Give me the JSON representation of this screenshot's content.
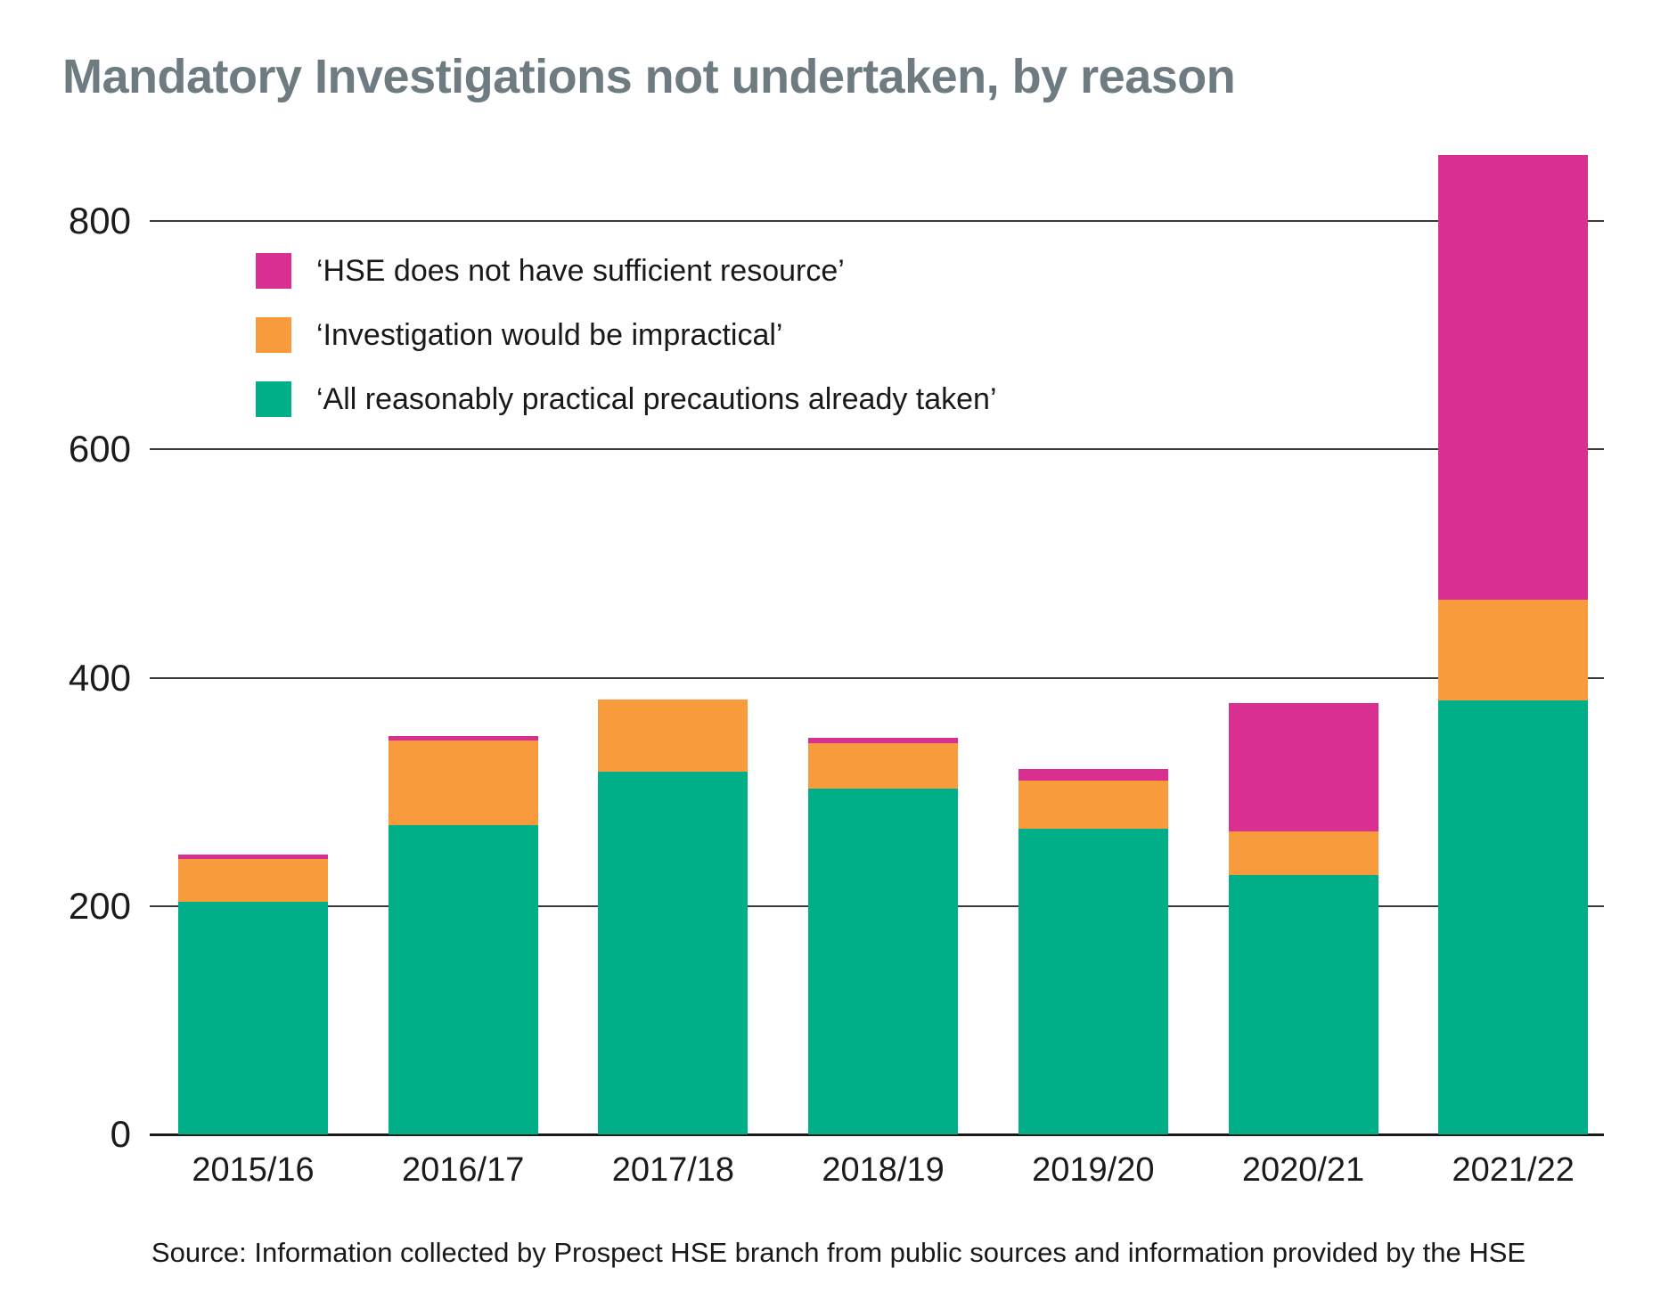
{
  "title": "Mandatory Investigations not undertaken, by reason",
  "source": "Source: Information collected by Prospect HSE branch from public sources and information provided by the HSE",
  "colors": {
    "pink": "#D82F90",
    "orange": "#F89B3D",
    "green": "#00AF88",
    "title_gray": "#6E7B80",
    "gridline": "#3A3A3A",
    "text": "#191919"
  },
  "chart_data": {
    "type": "bar",
    "stacked": true,
    "title": "Mandatory Investigations not undertaken, by reason",
    "categories": [
      "2015/16",
      "2016/17",
      "2017/18",
      "2018/19",
      "2019/20",
      "2020/21",
      "2021/22"
    ],
    "series": [
      {
        "name": "‘HSE does not have sufficient resource’",
        "color": "#D82F90",
        "values": [
          4,
          4,
          0,
          4,
          10,
          113,
          390
        ]
      },
      {
        "name": "‘Investigation would be impractical’",
        "color": "#F89B3D",
        "values": [
          37,
          74,
          63,
          40,
          42,
          38,
          88
        ]
      },
      {
        "name": "‘All reasonably practical precautions already taken’",
        "color": "#00AF88",
        "values": [
          204,
          271,
          318,
          303,
          268,
          227,
          380
        ]
      }
    ],
    "totals": [
      245,
      349,
      381,
      347,
      320,
      378,
      858
    ],
    "xlabel": "",
    "ylabel": "",
    "ylim": [
      0,
      860
    ],
    "y_ticks": [
      0,
      200,
      400,
      600,
      800
    ],
    "grid": true,
    "legend_position": "top-left-inside"
  }
}
